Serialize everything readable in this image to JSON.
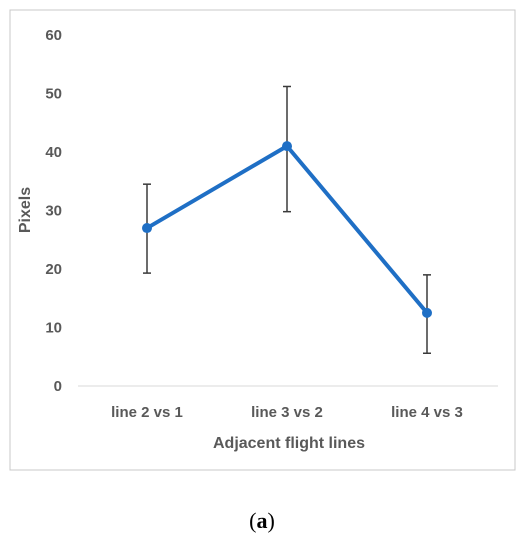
{
  "chart_data": {
    "type": "line",
    "title": "",
    "xlabel": "Adjacent flight lines",
    "ylabel": "Pixels",
    "categories": [
      "line 2 vs 1",
      "line 3 vs 2",
      "line 4 vs 3"
    ],
    "series": [
      {
        "values": [
          27,
          41,
          12.5
        ],
        "error_low": [
          19.3,
          29.8,
          5.6
        ],
        "error_high": [
          34.5,
          51.2,
          19
        ]
      }
    ],
    "ylim": [
      0,
      60
    ],
    "yticks": [
      0,
      10,
      20,
      30,
      40,
      50,
      60
    ],
    "grid": false,
    "legend": "none",
    "line_color": "#1F6FC5",
    "error_bar_color": "#3a3a3a",
    "frame_color": "#c8c8c8"
  },
  "caption": {
    "open": "(",
    "letter": "a",
    "close": ")"
  }
}
